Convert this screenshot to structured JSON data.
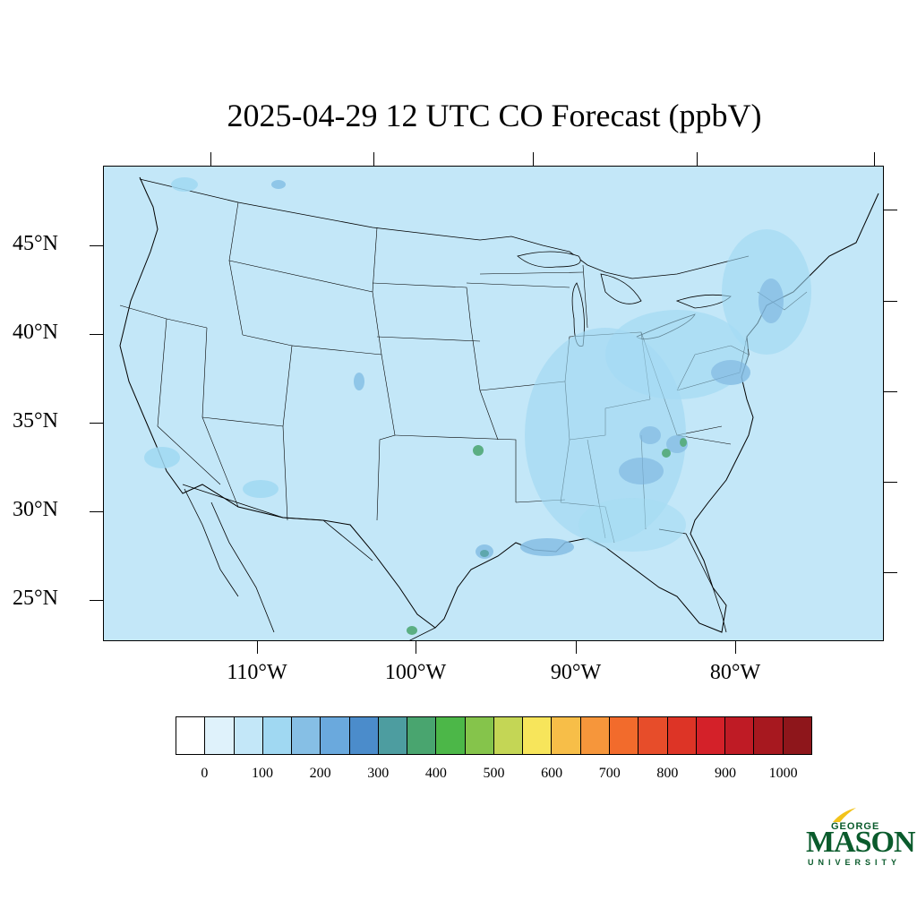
{
  "title": "2025-04-29 12 UTC CO Forecast (ppbV)",
  "map": {
    "region": "Contiguous United States",
    "background_fill": "#c3e7f8",
    "latitude_labels": [
      "45°N",
      "40°N",
      "35°N",
      "30°N",
      "25°N"
    ],
    "longitude_labels": [
      "110°W",
      "100°W",
      "90°W",
      "80°W"
    ],
    "hotspots": [
      {
        "place": "Oklahoma City",
        "level": "400-450"
      },
      {
        "place": "Atlanta area",
        "level": "400-450"
      },
      {
        "place": "Charlotte area",
        "level": "400-450"
      },
      {
        "place": "Monterrey, Mexico",
        "level": "400-450"
      },
      {
        "place": "Houston",
        "level": "300-400"
      }
    ]
  },
  "colorbar": {
    "colors": [
      "#ffffff",
      "#dff2fb",
      "#c3e7f8",
      "#a0d8f2",
      "#86bfe5",
      "#6aa9dd",
      "#4b8ccb",
      "#4d9da0",
      "#49a56f",
      "#4cb748",
      "#85c44b",
      "#c4d655",
      "#f7e55b",
      "#f7be48",
      "#f6963b",
      "#f26b2c",
      "#e74d2a",
      "#dd3426",
      "#d42129",
      "#bf1b25",
      "#a7181f",
      "#8e161b"
    ],
    "labels": [
      "0",
      "100",
      "200",
      "300",
      "400",
      "500",
      "600",
      "700",
      "800",
      "900",
      "1000"
    ]
  },
  "logo": {
    "line1": "GEORGE",
    "line2": "MASON",
    "line3": "UNIVERSITY",
    "color": "#0a5b2c",
    "accent": "#f2c31b"
  }
}
